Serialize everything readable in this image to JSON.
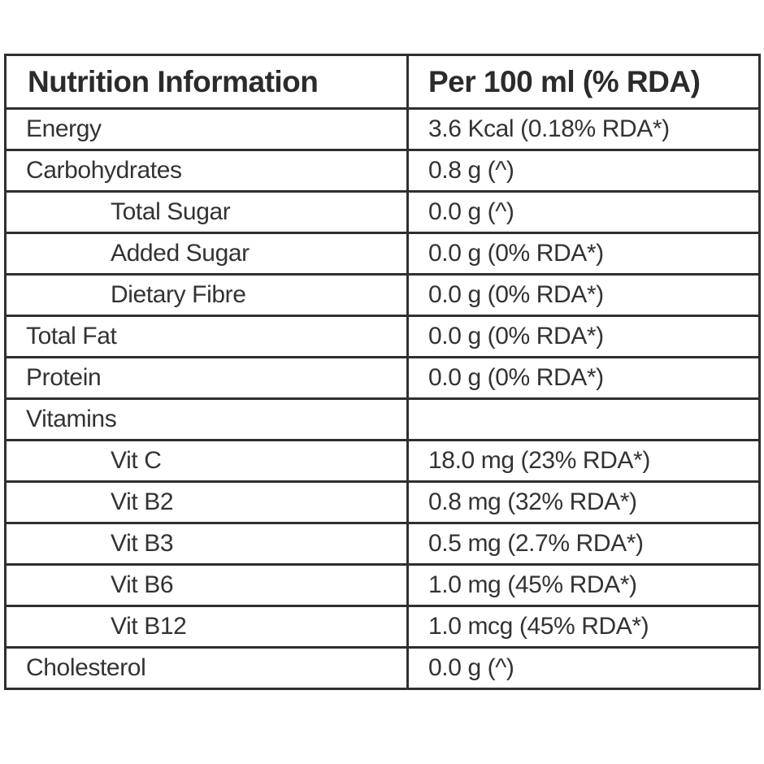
{
  "table": {
    "header": {
      "col1": "Nutrition Information",
      "col2": "Per 100 ml (% RDA)"
    },
    "rows": [
      {
        "label": "Energy",
        "value": "3.6 Kcal (0.18% RDA*)",
        "indent": false
      },
      {
        "label": "Carbohydrates",
        "value": "0.8 g (^)",
        "indent": false
      },
      {
        "label": "Total Sugar",
        "value": "0.0 g (^)",
        "indent": true
      },
      {
        "label": "Added Sugar",
        "value": "0.0 g (0% RDA*)",
        "indent": true
      },
      {
        "label": "Dietary Fibre",
        "value": "0.0 g (0% RDA*)",
        "indent": true
      },
      {
        "label": "Total Fat",
        "value": "0.0 g (0% RDA*)",
        "indent": false
      },
      {
        "label": "Protein",
        "value": "0.0 g (0% RDA*)",
        "indent": false
      },
      {
        "label": "Vitamins",
        "value": "",
        "indent": false
      },
      {
        "label": "Vit C",
        "value": "18.0 mg (23% RDA*)",
        "indent": true
      },
      {
        "label": "Vit B2",
        "value": "0.8 mg (32% RDA*)",
        "indent": true
      },
      {
        "label": "Vit B3",
        "value": "0.5 mg (2.7% RDA*)",
        "indent": true
      },
      {
        "label": "Vit B6",
        "value": "1.0 mg (45% RDA*)",
        "indent": true
      },
      {
        "label": "Vit B12",
        "value": "1.0 mcg (45% RDA*)",
        "indent": true
      },
      {
        "label": "Cholesterol",
        "value": "0.0 g (^)",
        "indent": false
      }
    ]
  }
}
